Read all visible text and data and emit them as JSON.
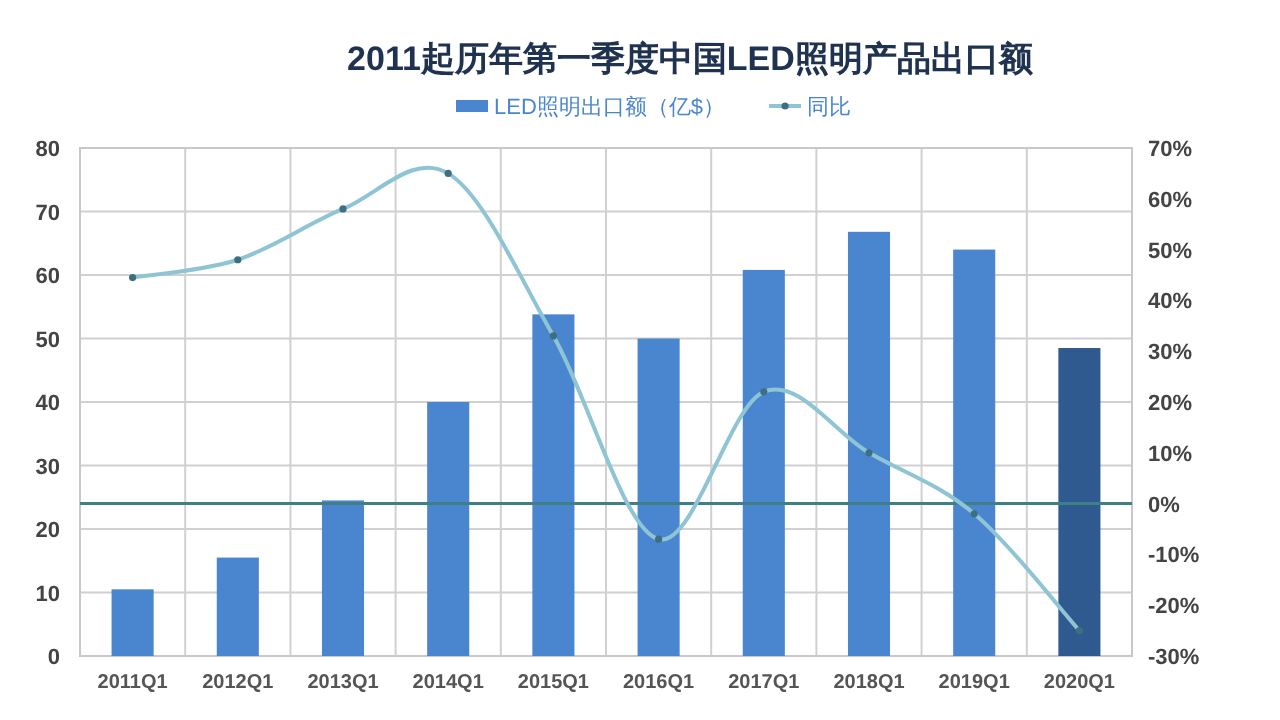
{
  "chart_data": {
    "type": "bar",
    "title": "2011起历年第一季度中国LED照明产品出口额",
    "categories": [
      "2011Q1",
      "2012Q1",
      "2013Q1",
      "2014Q1",
      "2015Q1",
      "2016Q1",
      "2017Q1",
      "2018Q1",
      "2019Q1",
      "2020Q1"
    ],
    "series": [
      {
        "name": "LED照明出口额（亿$）",
        "color": "#4a86d0",
        "colors": [
          "#4a86d0",
          "#4a86d0",
          "#4a86d0",
          "#4a86d0",
          "#4a86d0",
          "#4a86d0",
          "#4a86d0",
          "#4a86d0",
          "#4a86d0",
          "#2f5a8f"
        ],
        "values": [
          10.5,
          15.5,
          24.5,
          40,
          53.8,
          50,
          60.8,
          66.8,
          64,
          48.5
        ]
      },
      {
        "name": "同比",
        "type": "line",
        "axis": "y2",
        "color": "#8fc4d4",
        "marker": "circle",
        "values": [
          44.5,
          48,
          58,
          65,
          33,
          -7,
          22,
          10,
          -2,
          -25
        ]
      }
    ],
    "ylim": [
      0,
      80
    ],
    "yticks": [
      0,
      10,
      20,
      30,
      40,
      50,
      60,
      70,
      80
    ],
    "y2lim": [
      -30,
      70
    ],
    "y2ticks": [
      {
        "value": -30,
        "label": "-30%"
      },
      {
        "value": -20,
        "label": "-20%"
      },
      {
        "value": -10,
        "label": "-10%"
      },
      {
        "value": 0,
        "label": "0%"
      },
      {
        "value": 10,
        "label": "10%"
      },
      {
        "value": 20,
        "label": "20%"
      },
      {
        "value": 30,
        "label": "30%"
      },
      {
        "value": 40,
        "label": "40%"
      },
      {
        "value": 50,
        "label": "50%"
      },
      {
        "value": 60,
        "label": "60%"
      },
      {
        "value": 70,
        "label": "70%"
      }
    ],
    "ref_lines": [
      {
        "axis": "y2",
        "value": 0,
        "color": "#3f7f86"
      }
    ],
    "grid": true,
    "legend": "top"
  }
}
